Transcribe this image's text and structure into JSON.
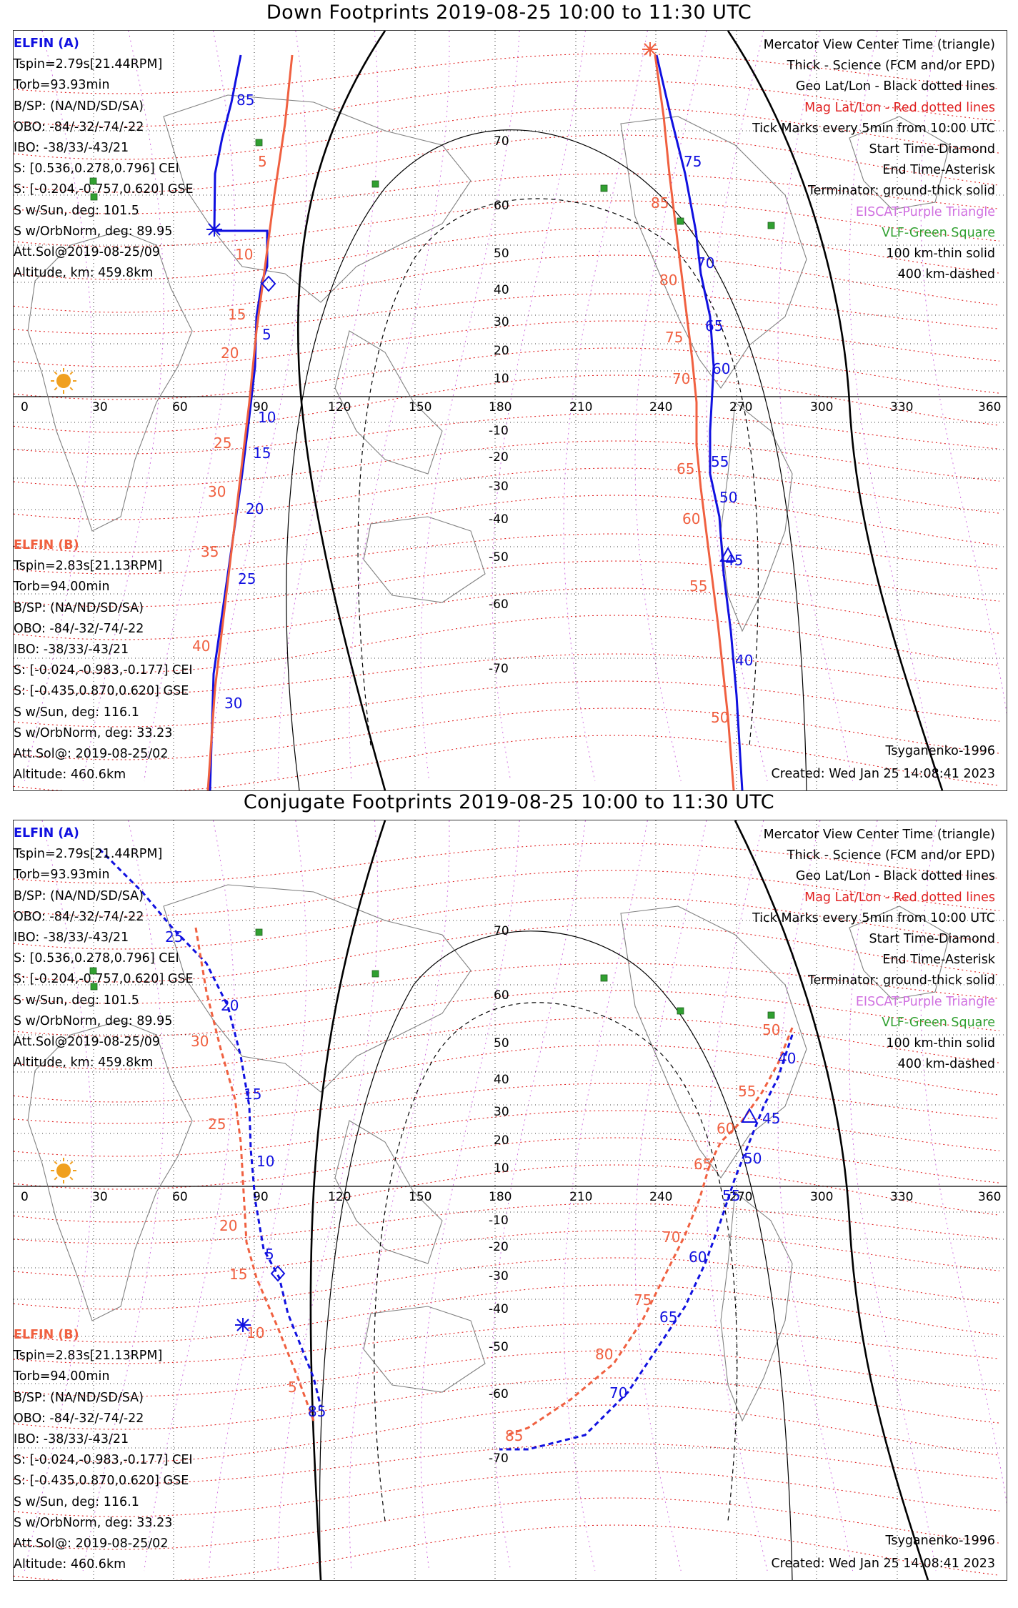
{
  "panels": [
    {
      "id": "down",
      "title": "Down Footprints 2019-08-25 10:00 to 11:30 UTC",
      "lon_ticks": [
        "0",
        "30",
        "60",
        "90",
        "120",
        "150",
        "180",
        "210",
        "240",
        "270",
        "300",
        "330",
        "360"
      ],
      "lat_ticks": [
        "70",
        "60",
        "50",
        "40",
        "30",
        "20",
        "10",
        "-10",
        "-20",
        "-30",
        "-40",
        "-50",
        "-60",
        "-70"
      ]
    },
    {
      "id": "conj",
      "title": "Conjugate Footprints 2019-08-25 10:00 to 11:30 UTC",
      "lon_ticks": [
        "0",
        "30",
        "60",
        "90",
        "120",
        "150",
        "180",
        "210",
        "240",
        "270",
        "300",
        "330",
        "360"
      ],
      "lat_ticks": [
        "70",
        "60",
        "50",
        "40",
        "30",
        "20",
        "10",
        "-10",
        "-20",
        "-30",
        "-40",
        "-50",
        "-60",
        "-70"
      ]
    }
  ],
  "elfin_a": {
    "name": "ELFIN (A)",
    "tspin": "Tspin=2.79s[21.44RPM]",
    "torb": "Torb=93.93min",
    "bsp": "B/SP: (NA/ND/SD/SA)",
    "obo": "OBO: -84/-32/-74/-22",
    "ibo": "IBO: -38/33/-43/21",
    "s_cei": "S: [0.536,0.278,0.796] CEI",
    "s_gse": "S: [-0.204,-0.757,0.620] GSE",
    "sw_sun": "S w/Sun, deg: 101.5",
    "sw_orb": "S w/OrbNorm, deg: 89.95",
    "att": "Att.Sol@2019-08-25/09",
    "alt": "Altitude, km: 459.8km"
  },
  "elfin_b": {
    "name": "ELFIN (B)",
    "tspin": "Tspin=2.83s[21.13RPM]",
    "torb": "Torb=94.00min",
    "bsp": "B/SP: (NA/ND/SD/SA)",
    "obo": "OBO: -84/-32/-74/-22",
    "ibo": "IBO: -38/33/-43/21",
    "s_cei": "S: [-0.024,-0.983,-0.177] CEI",
    "s_gse": "S: [-0.435,0.870,0.620] GSE",
    "sw_sun": "S w/Sun, deg: 116.1",
    "sw_orb": "S w/OrbNorm, deg: 33.23",
    "att": "Att.Sol@: 2019-08-25/02",
    "alt": "Altitude: 460.6km"
  },
  "legend": {
    "l1": "Mercator View Center Time (triangle)",
    "l2": "Thick - Science (FCM and/or EPD)",
    "l3": "Geo Lat/Lon - Black dotted lines",
    "l4": "Mag Lat/Lon - Red dotted lines",
    "l5": "Tick Marks every 5min from 10:00 UTC",
    "l6": "Start Time-Diamond",
    "l7": "End Time-Asterisk",
    "l8": "Terminator: ground-thick solid",
    "l9": "EISCAT-Purple Triangle",
    "l10": "VLF-Green Square",
    "l11": "100 km-thin solid",
    "l12": "400 km-dashed"
  },
  "footer": {
    "model": "Tsyganenko-1996",
    "created": "Created: Wed Jan 25 14:08:41 2023"
  },
  "down_labels": {
    "a": [
      "85",
      "5",
      "10",
      "15",
      "20",
      "25",
      "30",
      "75",
      "70",
      "65",
      "60",
      "55",
      "50",
      "45",
      "40"
    ],
    "b": [
      "5",
      "10",
      "15",
      "20",
      "25",
      "30",
      "35",
      "40",
      "85",
      "80",
      "75",
      "70",
      "65",
      "60",
      "55",
      "50"
    ]
  },
  "conj_labels": {
    "a": [
      "25",
      "20",
      "15",
      "10",
      "5",
      "85",
      "40",
      "45",
      "50",
      "55",
      "60",
      "65",
      "70"
    ],
    "b": [
      "30",
      "25",
      "20",
      "15",
      "10",
      "5",
      "50",
      "55",
      "60",
      "65",
      "70",
      "75",
      "80",
      "85"
    ]
  },
  "colors": {
    "elfin_a": "#1010e0",
    "elfin_b": "#f06040",
    "mag_grid": "#e02020",
    "geo_grid": "#000000",
    "eiscat": "#d070e0",
    "vlf": "#30a030",
    "sun": "#f0a020"
  }
}
